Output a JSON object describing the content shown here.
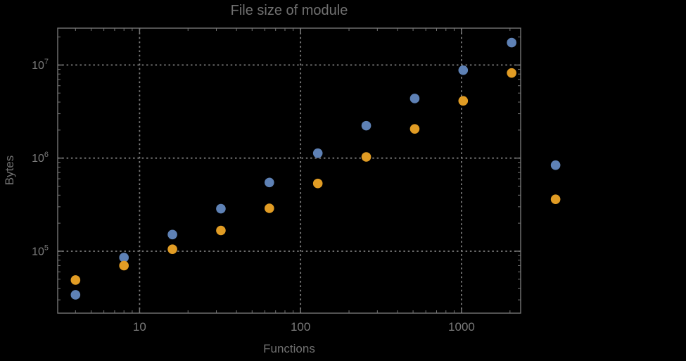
{
  "figure": {
    "background": "#000000",
    "frame_color": "#747474",
    "grid_color": "#7b7b7b",
    "text_color": "#717171",
    "tick_label_color": "#7a7a7a"
  },
  "chart_data": {
    "type": "scatter",
    "title": "File size of module",
    "xlabel": "Functions",
    "ylabel": "Bytes",
    "x_scale": "log",
    "y_scale": "log",
    "xlim": [
      3.1,
      2330
    ],
    "ylim": [
      21600,
      24900000
    ],
    "grid": "dotted",
    "legend_position": "none",
    "x_major_ticks": [
      {
        "value": 10,
        "label": "10"
      },
      {
        "value": 100,
        "label": "100"
      },
      {
        "value": 1000,
        "label": "1000"
      }
    ],
    "y_major_ticks": [
      {
        "value": 100000,
        "label_base": "10",
        "label_exp": "5"
      },
      {
        "value": 1000000,
        "label_base": "10",
        "label_exp": "6"
      },
      {
        "value": 10000000,
        "label_base": "10",
        "label_exp": "7"
      }
    ],
    "series": [
      {
        "name": "series-blue",
        "color": "#5e81b5",
        "x": [
          4,
          8,
          16,
          32,
          64,
          128,
          256,
          512,
          1024,
          2048,
          3840
        ],
        "y": [
          34000,
          85500,
          151000,
          286000,
          547000,
          1130000,
          2230000,
          4370000,
          8800000,
          17400000,
          840000
        ]
      },
      {
        "name": "series-orange",
        "color": "#e19c24",
        "x": [
          4,
          8,
          16,
          32,
          64,
          128,
          256,
          512,
          1024,
          2048,
          3840
        ],
        "y": [
          49000,
          70000,
          105000,
          167000,
          289000,
          534000,
          1030000,
          2060000,
          4120000,
          8220000,
          361000
        ]
      }
    ],
    "marker": {
      "shape": "circle",
      "radius_px": 6.8
    }
  }
}
